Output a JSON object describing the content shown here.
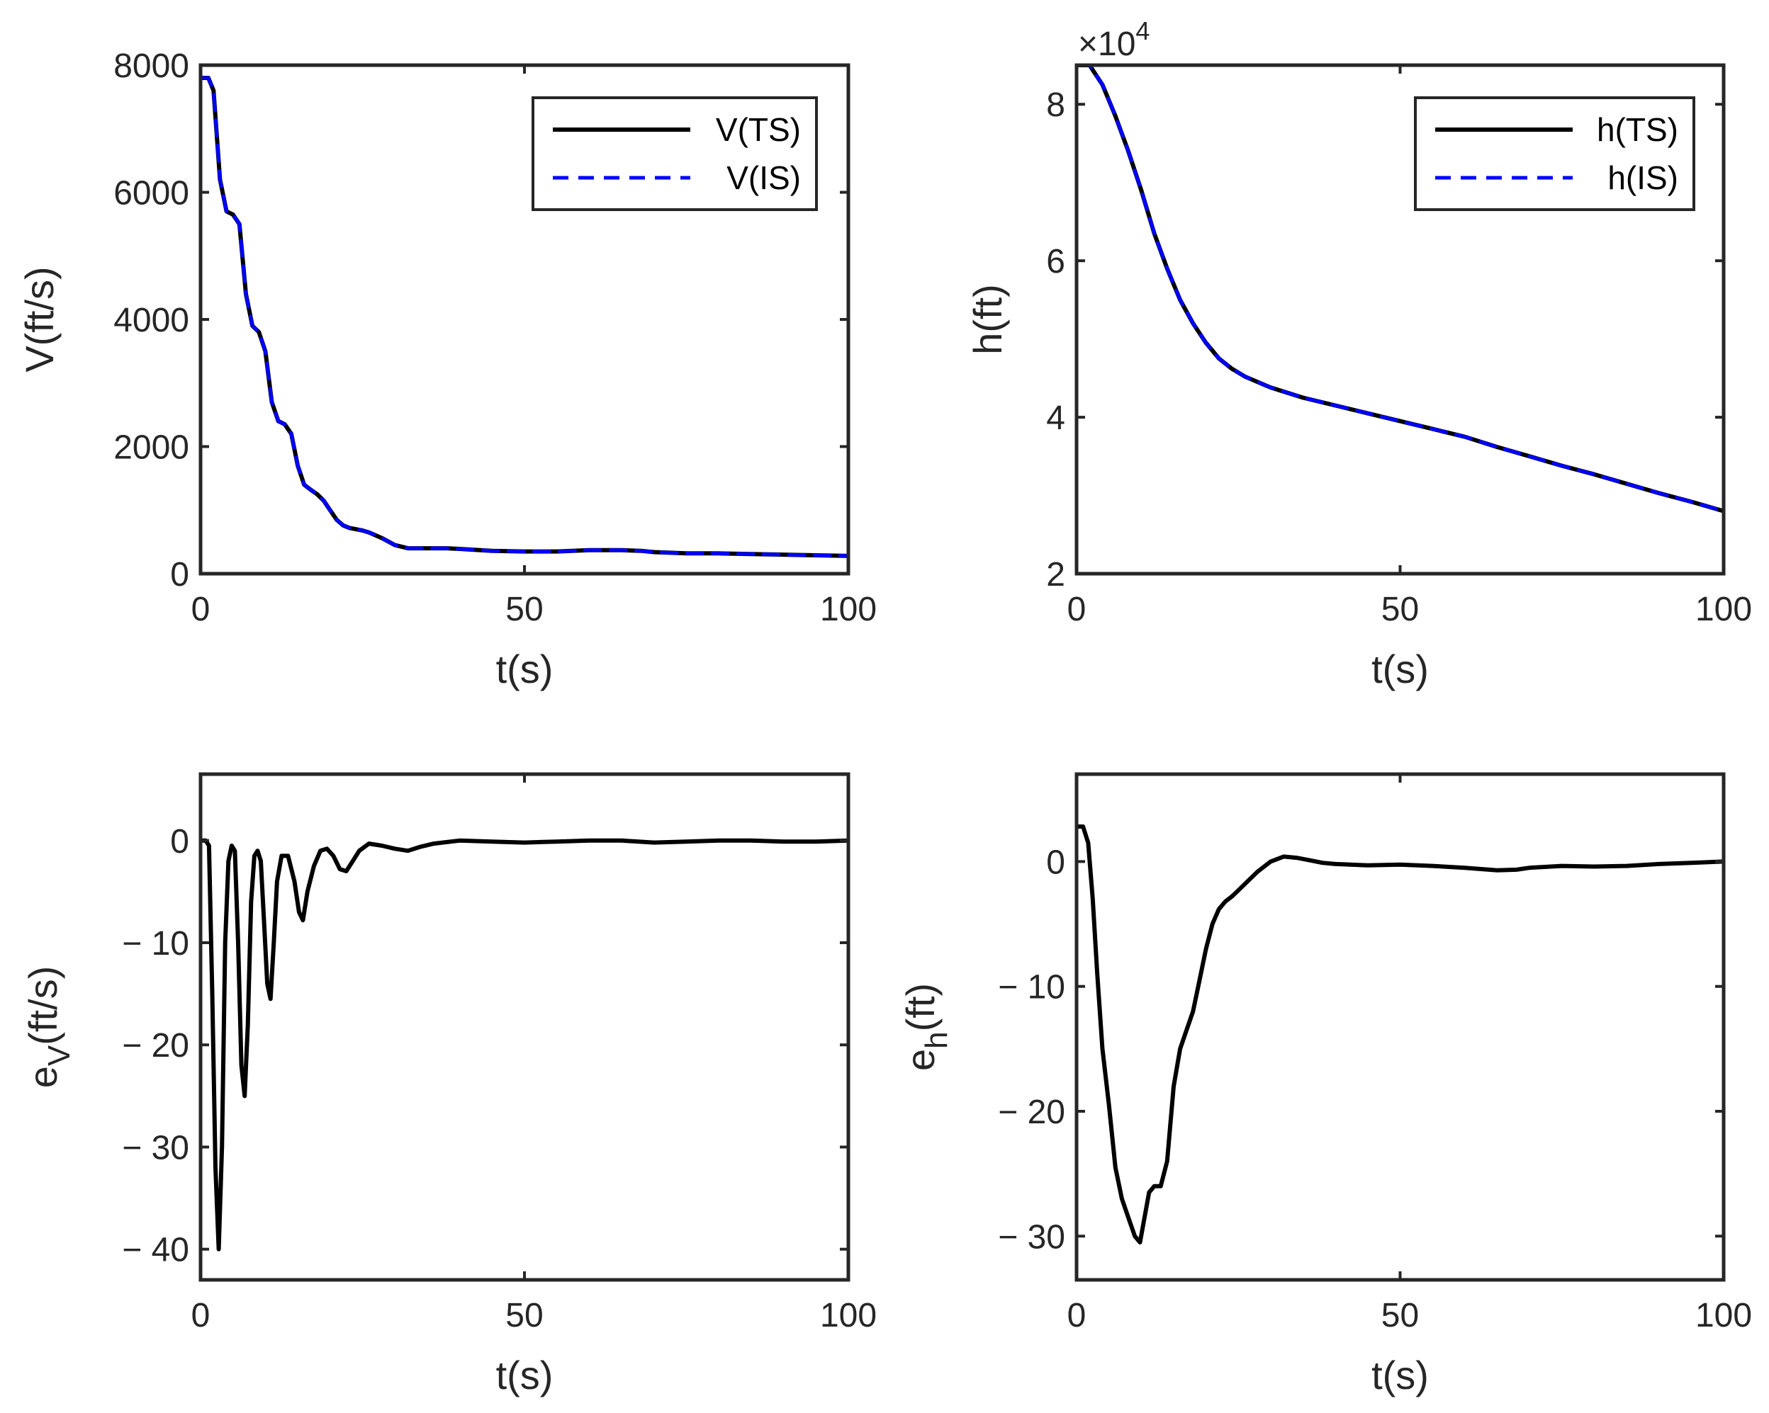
{
  "colors": {
    "ts": "#000000",
    "is": "#0000ff",
    "axis": "#262626"
  },
  "chart_data": [
    {
      "type": "line",
      "panel": "top-left",
      "xlabel": "t(s)",
      "ylabel": "V(ft/s)",
      "xlim": [
        0,
        100
      ],
      "ylim": [
        0,
        8000
      ],
      "xticks": [
        0,
        50,
        100
      ],
      "xtick_labels": [
        "0",
        "50",
        "100"
      ],
      "yticks": [
        0,
        2000,
        4000,
        6000,
        8000
      ],
      "ytick_labels": [
        "0",
        "2000",
        "4000",
        "6000",
        "8000"
      ],
      "legend": {
        "position": "top-right",
        "entries": [
          "V(TS)",
          "V(IS)"
        ]
      },
      "series": [
        {
          "name": "V(TS)",
          "style": "solid",
          "x": [
            0,
            1.2,
            2,
            3,
            4,
            5,
            6,
            7,
            8,
            9,
            10,
            11,
            12,
            13,
            14,
            15,
            16,
            17,
            18,
            19,
            20,
            21,
            22,
            23,
            24,
            25,
            26,
            28,
            30,
            32,
            35,
            38,
            40,
            45,
            50,
            55,
            60,
            65,
            68,
            70,
            75,
            80,
            85,
            90,
            95,
            100
          ],
          "values": [
            7800,
            7800,
            7600,
            6200,
            5700,
            5650,
            5500,
            4400,
            3900,
            3800,
            3500,
            2700,
            2400,
            2350,
            2200,
            1700,
            1400,
            1320,
            1250,
            1150,
            1000,
            850,
            760,
            720,
            700,
            680,
            650,
            560,
            450,
            400,
            400,
            400,
            390,
            360,
            350,
            350,
            370,
            370,
            360,
            340,
            320,
            320,
            310,
            300,
            290,
            280
          ]
        },
        {
          "name": "V(IS)",
          "style": "dashed",
          "x": [
            0,
            1.2,
            2,
            3,
            4,
            5,
            6,
            7,
            8,
            9,
            10,
            11,
            12,
            13,
            14,
            15,
            16,
            17,
            18,
            19,
            20,
            21,
            22,
            23,
            24,
            25,
            26,
            28,
            30,
            32,
            35,
            38,
            40,
            45,
            50,
            55,
            60,
            65,
            68,
            70,
            75,
            80,
            85,
            90,
            95,
            100
          ],
          "values": [
            7800,
            7800,
            7600,
            6200,
            5700,
            5650,
            5500,
            4400,
            3900,
            3800,
            3500,
            2700,
            2400,
            2350,
            2200,
            1700,
            1400,
            1320,
            1250,
            1150,
            1000,
            850,
            760,
            720,
            700,
            680,
            650,
            560,
            450,
            400,
            400,
            400,
            390,
            360,
            350,
            350,
            370,
            370,
            360,
            340,
            320,
            320,
            310,
            300,
            290,
            280
          ]
        }
      ]
    },
    {
      "type": "line",
      "panel": "top-right",
      "xlabel": "t(s)",
      "ylabel": "h(ft)",
      "exponent_label": "×10",
      "exponent_power": "4",
      "xlim": [
        0,
        100
      ],
      "ylim": [
        2,
        8.5
      ],
      "xticks": [
        0,
        50,
        100
      ],
      "xtick_labels": [
        "0",
        "50",
        "100"
      ],
      "yticks": [
        2,
        4,
        6,
        8
      ],
      "ytick_labels": [
        "2",
        "4",
        "6",
        "8"
      ],
      "legend": {
        "position": "top-right",
        "entries": [
          "h(TS)",
          "h(IS)"
        ]
      },
      "series": [
        {
          "name": "h(TS)",
          "style": "solid",
          "x": [
            0,
            2,
            4,
            6,
            8,
            10,
            12,
            14,
            16,
            18,
            20,
            22,
            24,
            26,
            28,
            30,
            35,
            40,
            45,
            50,
            55,
            60,
            65,
            70,
            75,
            80,
            85,
            90,
            95,
            100
          ],
          "values": [
            8.5,
            8.5,
            8.25,
            7.85,
            7.4,
            6.9,
            6.35,
            5.9,
            5.5,
            5.2,
            4.95,
            4.75,
            4.62,
            4.52,
            4.45,
            4.38,
            4.25,
            4.15,
            4.05,
            3.95,
            3.85,
            3.75,
            3.62,
            3.5,
            3.38,
            3.27,
            3.15,
            3.03,
            2.92,
            2.8
          ]
        },
        {
          "name": "h(IS)",
          "style": "dashed",
          "x": [
            0,
            2,
            4,
            6,
            8,
            10,
            12,
            14,
            16,
            18,
            20,
            22,
            24,
            26,
            28,
            30,
            35,
            40,
            45,
            50,
            55,
            60,
            65,
            70,
            75,
            80,
            85,
            90,
            95,
            100
          ],
          "values": [
            8.5,
            8.5,
            8.25,
            7.85,
            7.4,
            6.9,
            6.35,
            5.9,
            5.5,
            5.2,
            4.95,
            4.75,
            4.62,
            4.52,
            4.45,
            4.38,
            4.25,
            4.15,
            4.05,
            3.95,
            3.85,
            3.75,
            3.62,
            3.5,
            3.38,
            3.27,
            3.15,
            3.03,
            2.92,
            2.8
          ]
        }
      ]
    },
    {
      "type": "line",
      "panel": "bottom-left",
      "xlabel": "t(s)",
      "ylabel_main": "e",
      "ylabel_sub": "V",
      "ylabel_rest": "(ft/s)",
      "xlim": [
        0,
        100
      ],
      "ylim": [
        -43,
        6.5
      ],
      "xticks": [
        0,
        50,
        100
      ],
      "xtick_labels": [
        "0",
        "50",
        "100"
      ],
      "yticks": [
        -40,
        -30,
        -20,
        -10,
        0
      ],
      "ytick_labels": [
        "− 40",
        "− 30",
        "− 20",
        "− 10",
        "0"
      ],
      "series": [
        {
          "name": "e_V",
          "style": "solid",
          "x": [
            0,
            0.8,
            1.3,
            1.8,
            2.3,
            2.8,
            3.3,
            3.8,
            4.3,
            4.8,
            5.3,
            5.8,
            6.3,
            6.8,
            7.3,
            7.8,
            8.3,
            8.8,
            9.3,
            9.8,
            10.3,
            10.8,
            11.3,
            11.8,
            12.5,
            13.5,
            14.5,
            15.2,
            15.8,
            16.5,
            17.5,
            18.5,
            19.5,
            20.5,
            21.5,
            22.5,
            23.5,
            24.5,
            26,
            28,
            30,
            32,
            34,
            36,
            40,
            45,
            50,
            55,
            60,
            65,
            70,
            75,
            80,
            85,
            90,
            95,
            100
          ],
          "values": [
            0,
            0,
            -0.5,
            -15,
            -32,
            -40,
            -30,
            -10,
            -2,
            -0.5,
            -1,
            -10,
            -22,
            -25,
            -18,
            -6,
            -1.5,
            -1,
            -2,
            -8,
            -14,
            -15.5,
            -10,
            -4,
            -1.5,
            -1.5,
            -4,
            -7,
            -7.8,
            -5,
            -2.5,
            -1,
            -0.8,
            -1.5,
            -2.8,
            -3,
            -2,
            -1,
            -0.3,
            -0.5,
            -0.8,
            -1,
            -0.6,
            -0.3,
            0,
            -0.1,
            -0.2,
            -0.1,
            0,
            0,
            -0.2,
            -0.1,
            0,
            0,
            -0.1,
            -0.1,
            0
          ]
        }
      ]
    },
    {
      "type": "line",
      "panel": "bottom-right",
      "xlabel": "t(s)",
      "ylabel_main": "e",
      "ylabel_sub": "h",
      "ylabel_rest": "(ft)",
      "xlim": [
        0,
        100
      ],
      "ylim": [
        -33.5,
        7
      ],
      "xticks": [
        0,
        50,
        100
      ],
      "xtick_labels": [
        "0",
        "50",
        "100"
      ],
      "yticks": [
        -30,
        -20,
        -10,
        0
      ],
      "ytick_labels": [
        "− 30",
        "− 20",
        "− 10",
        "0"
      ],
      "series": [
        {
          "name": "e_h",
          "style": "solid",
          "x": [
            0,
            1,
            1.8,
            2.5,
            3.2,
            4,
            5,
            6,
            7,
            8,
            9,
            9.8,
            10.5,
            11.2,
            12,
            13,
            14,
            15,
            16,
            17,
            18,
            19,
            20,
            21,
            22,
            23,
            24,
            25,
            26,
            28,
            30,
            32,
            34,
            36,
            38,
            40,
            45,
            50,
            55,
            60,
            65,
            68,
            70,
            75,
            80,
            85,
            90,
            95,
            100
          ],
          "values": [
            2.8,
            2.8,
            1.5,
            -3,
            -9,
            -15,
            -19.5,
            -24.5,
            -27,
            -28.5,
            -30,
            -30.5,
            -28.5,
            -26.5,
            -26,
            -26,
            -24,
            -18,
            -15,
            -13.5,
            -12,
            -9.5,
            -7,
            -5,
            -3.8,
            -3.2,
            -2.8,
            -2.3,
            -1.8,
            -0.8,
            0,
            0.4,
            0.3,
            0.1,
            -0.1,
            -0.2,
            -0.3,
            -0.25,
            -0.35,
            -0.5,
            -0.7,
            -0.65,
            -0.5,
            -0.35,
            -0.4,
            -0.35,
            -0.2,
            -0.1,
            0
          ]
        }
      ]
    }
  ]
}
